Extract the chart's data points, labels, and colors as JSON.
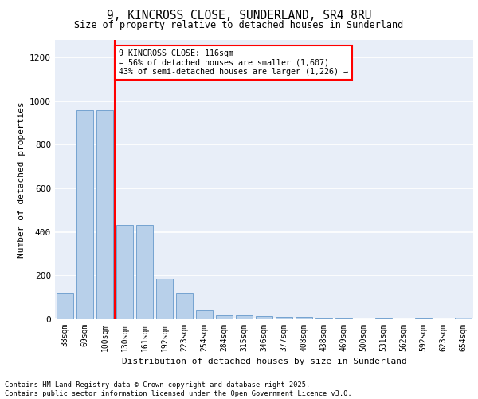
{
  "title_line1": "9, KINCROSS CLOSE, SUNDERLAND, SR4 8RU",
  "title_line2": "Size of property relative to detached houses in Sunderland",
  "xlabel": "Distribution of detached houses by size in Sunderland",
  "ylabel": "Number of detached properties",
  "categories": [
    "38sqm",
    "69sqm",
    "100sqm",
    "130sqm",
    "161sqm",
    "192sqm",
    "223sqm",
    "254sqm",
    "284sqm",
    "315sqm",
    "346sqm",
    "377sqm",
    "408sqm",
    "438sqm",
    "469sqm",
    "500sqm",
    "531sqm",
    "562sqm",
    "592sqm",
    "623sqm",
    "654sqm"
  ],
  "bar_heights": [
    120,
    960,
    960,
    430,
    430,
    185,
    120,
    40,
    18,
    18,
    15,
    10,
    10,
    5,
    5,
    0,
    5,
    0,
    5,
    0,
    8
  ],
  "bar_color": "#b8d0ea",
  "bar_edge_color": "#6699cc",
  "vline_color": "red",
  "annotation_text": "9 KINCROSS CLOSE: 116sqm\n← 56% of detached houses are smaller (1,607)\n43% of semi-detached houses are larger (1,226) →",
  "annotation_box_color": "white",
  "annotation_box_edge": "red",
  "ylim": [
    0,
    1280
  ],
  "yticks": [
    0,
    200,
    400,
    600,
    800,
    1000,
    1200
  ],
  "background_color": "#e8eef8",
  "grid_color": "white",
  "footer_line1": "Contains HM Land Registry data © Crown copyright and database right 2025.",
  "footer_line2": "Contains public sector information licensed under the Open Government Licence v3.0."
}
